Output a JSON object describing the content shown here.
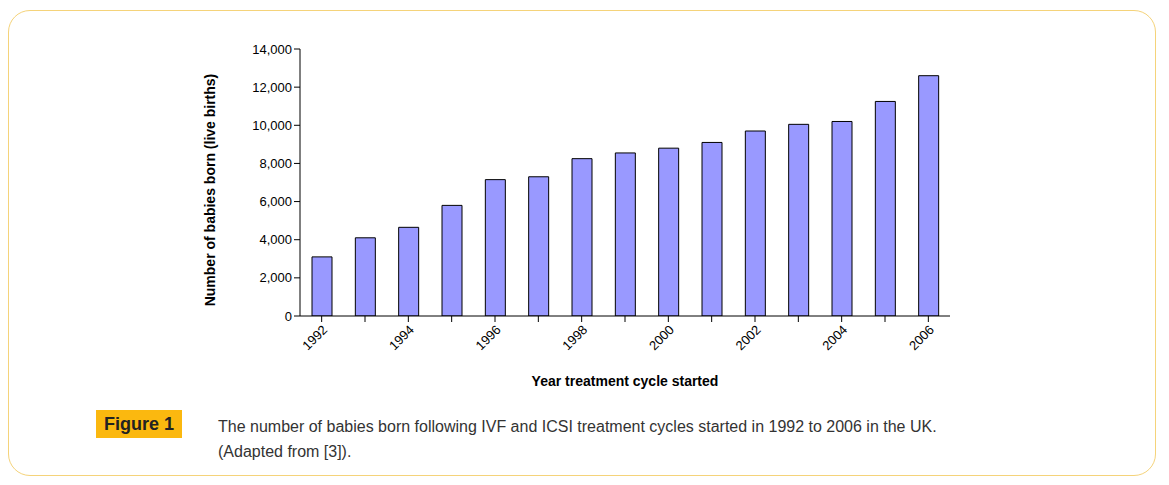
{
  "chart_data": {
    "type": "bar",
    "figure_label": "Figure 1",
    "caption": [
      "The number of babies born following IVF and ICSI treatment cycles started in 1992 to 2006 in the UK.",
      "(Adapted from [3])."
    ],
    "x_label": "Year treatment cycle started",
    "y_label": "Number of babies born (live births)",
    "categories": [
      "1992",
      null,
      "1994",
      null,
      "1996",
      null,
      "1998",
      null,
      "2000",
      null,
      "2002",
      null,
      "2004",
      null,
      "2006"
    ],
    "values": [
      3100,
      4100,
      4650,
      5800,
      7150,
      7300,
      8250,
      8550,
      8800,
      9100,
      9700,
      10050,
      10200,
      11250,
      12600
    ],
    "color": "#9999ff",
    "ylim": [
      0,
      14000
    ],
    "yticks": [
      0,
      {
        "value": 2000,
        "label": "2,000"
      },
      {
        "value": 4000,
        "label": "4,000"
      },
      {
        "value": 6000,
        "label": "6,000"
      },
      {
        "value": 8000,
        "label": "8,000"
      },
      {
        "value": 10000,
        "label": "10,000"
      },
      {
        "value": 12000,
        "label": "12,000"
      },
      {
        "value": 14000,
        "label": "14,000"
      }
    ],
    "grid": false
  }
}
